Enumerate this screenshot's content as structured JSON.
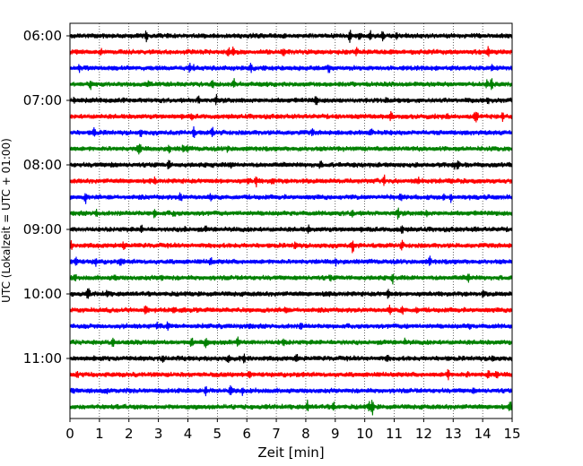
{
  "chart_data": {
    "type": "line",
    "title": "",
    "xlabel": "Zeit  [min]",
    "ylabel": "UTC (Lokalzeit = UTC + 01:00)",
    "xlim": [
      0,
      15
    ],
    "x_ticks": [
      "0",
      "1",
      "2",
      "3",
      "4",
      "5",
      "6",
      "7",
      "8",
      "9",
      "10",
      "11",
      "12",
      "13",
      "14",
      "15"
    ],
    "y_tick_labels": [
      "06:00",
      "07:00",
      "08:00",
      "09:00",
      "10:00",
      "11:00"
    ],
    "grid": "vertical dotted at each minute",
    "legend": "none",
    "color_cycle": [
      "#000000",
      "#ff0000",
      "#0000ff",
      "#008000"
    ],
    "traces": [
      {
        "start": "06:00",
        "color": "#000000"
      },
      {
        "start": "06:15",
        "color": "#ff0000"
      },
      {
        "start": "06:30",
        "color": "#0000ff"
      },
      {
        "start": "06:45",
        "color": "#008000"
      },
      {
        "start": "07:00",
        "color": "#000000"
      },
      {
        "start": "07:15",
        "color": "#ff0000"
      },
      {
        "start": "07:30",
        "color": "#0000ff"
      },
      {
        "start": "07:45",
        "color": "#008000"
      },
      {
        "start": "08:00",
        "color": "#000000"
      },
      {
        "start": "08:15",
        "color": "#ff0000"
      },
      {
        "start": "08:30",
        "color": "#0000ff"
      },
      {
        "start": "08:45",
        "color": "#008000"
      },
      {
        "start": "09:00",
        "color": "#000000"
      },
      {
        "start": "09:15",
        "color": "#ff0000"
      },
      {
        "start": "09:30",
        "color": "#0000ff"
      },
      {
        "start": "09:45",
        "color": "#008000"
      },
      {
        "start": "10:00",
        "color": "#000000"
      },
      {
        "start": "10:15",
        "color": "#ff0000"
      },
      {
        "start": "10:30",
        "color": "#0000ff"
      },
      {
        "start": "10:45",
        "color": "#008000"
      },
      {
        "start": "11:00",
        "color": "#000000"
      },
      {
        "start": "11:15",
        "color": "#ff0000"
      },
      {
        "start": "11:30",
        "color": "#0000ff"
      },
      {
        "start": "11:45",
        "color": "#008000"
      }
    ]
  }
}
